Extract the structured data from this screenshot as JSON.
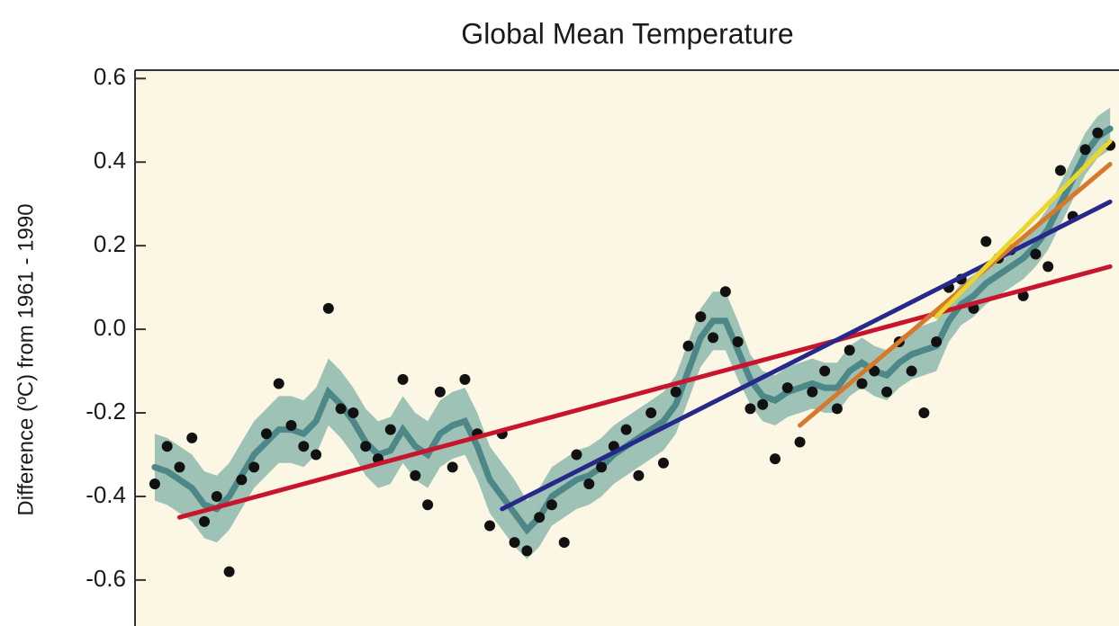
{
  "chart_data": {
    "type": "scatter",
    "title": "Global Mean Temperature",
    "y_label": "Difference (ºC) from 1961 - 1990",
    "categories": [
      null,
      null,
      null,
      null,
      null,
      null,
      null,
      null,
      null,
      null,
      null,
      null,
      null,
      null,
      null,
      null,
      null,
      null,
      null,
      null,
      null,
      null,
      null,
      null,
      null,
      null,
      null,
      null,
      null,
      null,
      null,
      null,
      null,
      null,
      null,
      null,
      null,
      null,
      null,
      null,
      null,
      null,
      null,
      null,
      null,
      null,
      null,
      null,
      null,
      null,
      null,
      null,
      null,
      null,
      null,
      null,
      null,
      null,
      null,
      null,
      null,
      null,
      null,
      null,
      null,
      null,
      null,
      null,
      null,
      null,
      null,
      null,
      null,
      null,
      null,
      null,
      null,
      null
    ],
    "ylim": [
      -0.71,
      0.62
    ],
    "yticks": [
      -0.6,
      -0.4,
      -0.2,
      {
        "value": 0,
        "label": "0.0"
      },
      0.2,
      0.4,
      0.6
    ],
    "background": "#fcf7e4",
    "series": [
      {
        "type": "line",
        "color": "#4d8787",
        "band_color": "#7fb0a6",
        "values": [
          -0.33,
          -0.34,
          -0.36,
          -0.38,
          -0.42,
          -0.43,
          -0.4,
          -0.35,
          -0.3,
          -0.27,
          -0.24,
          -0.24,
          -0.25,
          -0.22,
          -0.15,
          -0.18,
          -0.22,
          -0.27,
          -0.3,
          -0.29,
          -0.24,
          -0.28,
          -0.3,
          -0.25,
          -0.23,
          -0.22,
          -0.28,
          -0.36,
          -0.4,
          -0.44,
          -0.48,
          -0.45,
          -0.4,
          -0.38,
          -0.36,
          -0.35,
          -0.33,
          -0.3,
          -0.28,
          -0.26,
          -0.24,
          -0.22,
          -0.18,
          -0.1,
          -0.02,
          0.02,
          0.02,
          -0.05,
          -0.12,
          -0.16,
          -0.17,
          -0.15,
          -0.14,
          -0.13,
          -0.14,
          -0.14,
          -0.1,
          -0.08,
          -0.1,
          -0.11,
          -0.08,
          -0.06,
          -0.05,
          -0.04,
          0.02,
          0.06,
          0.08,
          0.11,
          0.13,
          0.15,
          0.17,
          0.2,
          0.24,
          0.3,
          0.36,
          0.42,
          0.46,
          0.48
        ],
        "errors": [
          0.08,
          0.08,
          0.08,
          0.08,
          0.08,
          0.08,
          0.08,
          0.08,
          0.08,
          0.08,
          0.08,
          0.08,
          0.08,
          0.08,
          0.08,
          0.08,
          0.08,
          0.08,
          0.08,
          0.08,
          0.08,
          0.08,
          0.08,
          0.08,
          0.08,
          0.08,
          0.08,
          0.08,
          0.08,
          0.08,
          0.07,
          0.07,
          0.07,
          0.07,
          0.07,
          0.07,
          0.07,
          0.07,
          0.07,
          0.07,
          0.07,
          0.07,
          0.07,
          0.07,
          0.07,
          0.07,
          0.07,
          0.07,
          0.06,
          0.06,
          0.06,
          0.06,
          0.06,
          0.06,
          0.06,
          0.06,
          0.06,
          0.06,
          0.06,
          0.06,
          0.06,
          0.06,
          0.06,
          0.06,
          0.05,
          0.05,
          0.05,
          0.05,
          0.05,
          0.05,
          0.05,
          0.05,
          0.05,
          0.05,
          0.05,
          0.05,
          0.05,
          0.05
        ]
      },
      {
        "type": "scatter",
        "color": "#111111",
        "values": [
          -0.37,
          -0.28,
          -0.33,
          -0.26,
          -0.46,
          -0.4,
          -0.58,
          -0.36,
          -0.33,
          -0.25,
          -0.13,
          -0.23,
          -0.28,
          -0.3,
          0.05,
          -0.19,
          -0.2,
          -0.28,
          -0.31,
          -0.24,
          -0.12,
          -0.35,
          -0.42,
          -0.15,
          -0.33,
          -0.12,
          -0.25,
          -0.47,
          -0.25,
          -0.51,
          -0.53,
          -0.45,
          -0.42,
          -0.51,
          -0.3,
          -0.37,
          -0.33,
          -0.28,
          -0.24,
          -0.35,
          -0.2,
          -0.32,
          -0.15,
          -0.04,
          0.03,
          -0.02,
          0.09,
          -0.03,
          -0.19,
          -0.18,
          -0.31,
          -0.14,
          -0.27,
          -0.15,
          -0.1,
          -0.19,
          -0.05,
          -0.13,
          -0.1,
          -0.15,
          -0.03,
          -0.1,
          -0.2,
          -0.03,
          0.1,
          0.12,
          0.05,
          0.21,
          0.17,
          0.19,
          0.08,
          0.18,
          0.15,
          0.38,
          0.27,
          0.43,
          0.47,
          0.44
        ]
      },
      {
        "type": "line",
        "color": "#c8142c",
        "values": [
          null,
          null,
          -0.45,
          -0.442,
          -0.434,
          -0.426,
          -0.418,
          -0.41,
          -0.402,
          -0.394,
          -0.386,
          -0.378,
          -0.37,
          -0.362,
          -0.354,
          -0.346,
          -0.338,
          -0.33,
          -0.322,
          -0.314,
          -0.306,
          -0.298,
          -0.29,
          -0.282,
          -0.274,
          -0.266,
          -0.258,
          -0.25,
          -0.242,
          -0.234,
          -0.226,
          -0.218,
          -0.21,
          -0.202,
          -0.194,
          -0.186,
          -0.178,
          -0.17,
          -0.162,
          -0.154,
          -0.146,
          -0.138,
          -0.13,
          -0.122,
          -0.114,
          -0.106,
          -0.098,
          -0.09,
          -0.082,
          -0.074,
          -0.066,
          -0.058,
          -0.05,
          -0.042,
          -0.034,
          -0.026,
          -0.018,
          -0.01,
          -0.002,
          0.006,
          0.014,
          0.022,
          0.03,
          0.038,
          0.046,
          0.054,
          0.062,
          0.07,
          0.078,
          0.086,
          0.094,
          0.102,
          0.11,
          0.118,
          0.126,
          0.134,
          0.142,
          0.15
        ]
      },
      {
        "type": "line",
        "color": "#27298a",
        "values": [
          null,
          null,
          null,
          null,
          null,
          null,
          null,
          null,
          null,
          null,
          null,
          null,
          null,
          null,
          null,
          null,
          null,
          null,
          null,
          null,
          null,
          null,
          null,
          null,
          null,
          null,
          null,
          null,
          -0.43,
          -0.415,
          -0.4,
          -0.385,
          -0.37,
          -0.355,
          -0.34,
          -0.325,
          -0.31,
          -0.295,
          -0.28,
          -0.265,
          -0.25,
          -0.235,
          -0.22,
          -0.205,
          -0.19,
          -0.175,
          -0.16,
          -0.145,
          -0.13,
          -0.115,
          -0.1,
          -0.085,
          -0.07,
          -0.055,
          -0.04,
          -0.025,
          -0.01,
          0.005,
          0.02,
          0.035,
          0.05,
          0.065,
          0.08,
          0.095,
          0.11,
          0.125,
          0.14,
          0.155,
          0.17,
          0.185,
          0.2,
          0.215,
          0.23,
          0.245,
          0.26,
          0.275,
          0.29,
          0.305
        ]
      },
      {
        "type": "line",
        "color": "#d8782a",
        "values": [
          null,
          null,
          null,
          null,
          null,
          null,
          null,
          null,
          null,
          null,
          null,
          null,
          null,
          null,
          null,
          null,
          null,
          null,
          null,
          null,
          null,
          null,
          null,
          null,
          null,
          null,
          null,
          null,
          null,
          null,
          null,
          null,
          null,
          null,
          null,
          null,
          null,
          null,
          null,
          null,
          null,
          null,
          null,
          null,
          null,
          null,
          null,
          null,
          null,
          null,
          null,
          null,
          -0.23,
          -0.205,
          -0.18,
          -0.155,
          -0.13,
          -0.105,
          -0.08,
          -0.055,
          -0.03,
          -0.005,
          0.02,
          0.045,
          0.07,
          0.095,
          0.12,
          0.145,
          0.17,
          0.195,
          0.22,
          0.245,
          0.27,
          0.295,
          0.32,
          0.345,
          0.37,
          0.395
        ]
      },
      {
        "type": "line",
        "color": "#ecd62c",
        "values": [
          null,
          null,
          null,
          null,
          null,
          null,
          null,
          null,
          null,
          null,
          null,
          null,
          null,
          null,
          null,
          null,
          null,
          null,
          null,
          null,
          null,
          null,
          null,
          null,
          null,
          null,
          null,
          null,
          null,
          null,
          null,
          null,
          null,
          null,
          null,
          null,
          null,
          null,
          null,
          null,
          null,
          null,
          null,
          null,
          null,
          null,
          null,
          null,
          null,
          null,
          null,
          null,
          null,
          null,
          null,
          null,
          null,
          null,
          null,
          null,
          null,
          null,
          null,
          0.03,
          0.06,
          0.09,
          0.12,
          0.15,
          0.18,
          0.21,
          0.24,
          0.27,
          0.3,
          0.33,
          0.36,
          0.39,
          0.42,
          0.45
        ]
      }
    ]
  }
}
